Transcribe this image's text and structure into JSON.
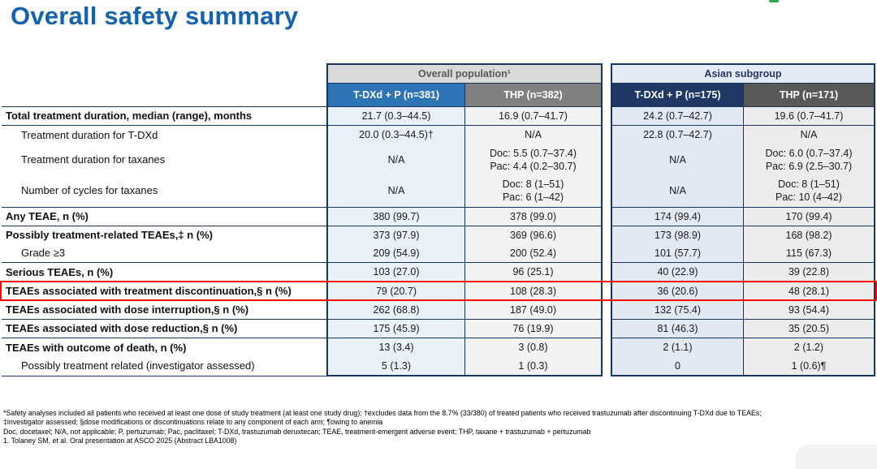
{
  "page": {
    "title": "Overall safety summary"
  },
  "colors": {
    "title_blue": "#1563ad",
    "border_navy": "#17365d",
    "header_overall_bg": "#d9d9d9",
    "header_asian_bg": "#e4ebf6",
    "col_overall_tdxd_header": "#2e75b6",
    "col_overall_thp_header": "#808080",
    "col_asian_tdxd_header": "#1f3864",
    "col_asian_thp_header": "#595959",
    "col_overall_tdxd_body": "#eaf1f9",
    "col_overall_thp_body": "#f2f2f2",
    "col_asian_tdxd_body": "#e2e9f5",
    "col_asian_thp_body": "#ececec",
    "highlight_red": "#ff0000",
    "logo_green": "#2aa94f"
  },
  "table": {
    "col_groups": [
      {
        "label": "Overall population¹"
      },
      {
        "label": "Asian subgroup"
      }
    ],
    "columns": [
      {
        "label": "T-DXd + P (n=381)"
      },
      {
        "label": "THP (n=382)"
      },
      {
        "label": "T-DXd + P (n=175)"
      },
      {
        "label": "THP (n=171)"
      }
    ],
    "rows": [
      {
        "label": "Total treatment duration, median (range), months",
        "indent": false,
        "rule_above": true,
        "highlighted": false,
        "cells": [
          "21.7 (0.3–44.5)",
          "16.9 (0.7–41.7)",
          "24.2 (0.7–42.7)",
          "19.6 (0.7–41.7)"
        ]
      },
      {
        "label": "Treatment duration for T-DXd",
        "indent": true,
        "rule_above": true,
        "highlighted": false,
        "cells": [
          "20.0 (0.3–44.5)†",
          "N/A",
          "22.8 (0.7–42.7)",
          "N/A"
        ]
      },
      {
        "label": "Treatment duration for taxanes",
        "indent": true,
        "rule_above": false,
        "highlighted": false,
        "cells": [
          "N/A",
          "Doc: 5.5 (0.7–37.4)\nPac: 4.4 (0.2–30.7)",
          "N/A",
          "Doc: 6.0 (0.7–37.4)\nPac: 6.9 (2.5–30.7)"
        ]
      },
      {
        "label": "Number of cycles for taxanes",
        "indent": true,
        "rule_above": false,
        "highlighted": false,
        "cells": [
          "N/A",
          "Doc: 8 (1–51)\nPac: 6 (1–42)",
          "N/A",
          "Doc: 8 (1–51)\nPac: 10 (4–42)"
        ]
      },
      {
        "label": "Any TEAE, n (%)",
        "indent": false,
        "rule_above": true,
        "highlighted": false,
        "cells": [
          "380 (99.7)",
          "378 (99.0)",
          "174 (99.4)",
          "170 (99.4)"
        ]
      },
      {
        "label": "Possibly treatment-related TEAEs,‡ n (%)",
        "indent": false,
        "rule_above": true,
        "highlighted": false,
        "cells": [
          "373 (97.9)",
          "369 (96.6)",
          "173 (98.9)",
          "168 (98.2)"
        ]
      },
      {
        "label": "Grade ≥3",
        "indent": true,
        "rule_above": false,
        "highlighted": false,
        "cells": [
          "209 (54.9)",
          "200 (52.4)",
          "101 (57.7)",
          "115 (67.3)"
        ]
      },
      {
        "label": "Serious TEAEs, n (%)",
        "indent": false,
        "rule_above": true,
        "highlighted": false,
        "cells": [
          "103 (27.0)",
          "96 (25.1)",
          "40 (22.9)",
          "39 (22.8)"
        ]
      },
      {
        "label": "TEAEs associated with treatment discontinuation,§ n (%)",
        "indent": false,
        "rule_above": true,
        "highlighted": true,
        "cells": [
          "79 (20.7)",
          "108 (28.3)",
          "36 (20.6)",
          "48 (28.1)"
        ]
      },
      {
        "label": "TEAEs associated with dose interruption,§ n (%)",
        "indent": false,
        "rule_above": true,
        "highlighted": false,
        "cells": [
          "262 (68.8)",
          "187 (49.0)",
          "132 (75.4)",
          "93 (54.4)"
        ]
      },
      {
        "label": "TEAEs associated with dose reduction,§ n (%)",
        "indent": false,
        "rule_above": true,
        "highlighted": false,
        "cells": [
          "175 (45.9)",
          "76 (19.9)",
          "81 (46.3)",
          "35 (20.5)"
        ]
      },
      {
        "label": "TEAEs with outcome of death, n (%)",
        "indent": false,
        "rule_above": true,
        "highlighted": false,
        "cells": [
          "13 (3.4)",
          "3 (0.8)",
          "2 (1.1)",
          "2 (1.2)"
        ]
      },
      {
        "label": "Possibly treatment related (investigator assessed)",
        "indent": true,
        "rule_above": false,
        "highlighted": false,
        "cells": [
          "5 (1.3)",
          "1 (0.3)",
          "0",
          "1 (0.6)¶"
        ]
      }
    ]
  },
  "footnotes": [
    "*Safety analyses included all patients who received at least one dose of study treatment (at least one study drug); †excludes data from the 8.7% (33/380) of treated patients who received trastuzumab after discontinuing T-DXd due to TEAEs;",
    "‡investigator assessed; §dose modifications or discontinuations relate to any component of each arm; ¶owing to anemia",
    "Doc, docetaxel; N/A, not applicable; P, pertuzumab; Pac, paclitaxel; T-DXd, trastuzumab deruxtecan; TEAE, treatment-emergent adverse event; THP, taxane + trastuzumab + pertuzumab",
    "1. Tolaney SM, et al. Oral presentation at ASCO 2025 (Abstract LBA1008)"
  ]
}
